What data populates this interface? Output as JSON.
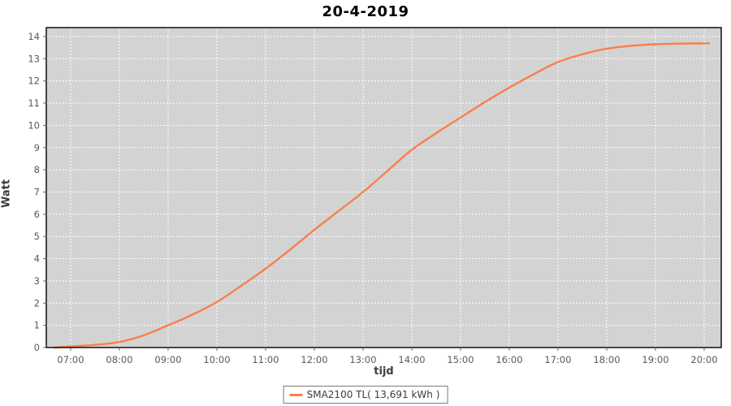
{
  "chart_data": {
    "type": "line",
    "title": "20-4-2019",
    "xlabel": "tijd",
    "ylabel": "Watt",
    "x_axis": {
      "start_hour": 6.5,
      "end_hour": 20.35,
      "ticks": [
        {
          "hour": 7,
          "label": "07:00"
        },
        {
          "hour": 8,
          "label": "08:00"
        },
        {
          "hour": 9,
          "label": "09:00"
        },
        {
          "hour": 10,
          "label": "10:00"
        },
        {
          "hour": 11,
          "label": "11:00"
        },
        {
          "hour": 12,
          "label": "12:00"
        },
        {
          "hour": 13,
          "label": "13:00"
        },
        {
          "hour": 14,
          "label": "14:00"
        },
        {
          "hour": 15,
          "label": "15:00"
        },
        {
          "hour": 16,
          "label": "16:00"
        },
        {
          "hour": 17,
          "label": "17:00"
        },
        {
          "hour": 18,
          "label": "18:00"
        },
        {
          "hour": 19,
          "label": "19:00"
        },
        {
          "hour": 20,
          "label": "20:00"
        }
      ]
    },
    "y_axis": {
      "min": 0,
      "max": 14.4,
      "ticks": [
        0,
        1,
        2,
        3,
        4,
        5,
        6,
        7,
        8,
        9,
        10,
        11,
        12,
        13,
        14
      ]
    },
    "grid": {
      "shown": true,
      "style": "dashed-white"
    },
    "legend": {
      "position": "bottom-center",
      "label": "SMA2100 TL( 13,691 kWh )"
    },
    "series": [
      {
        "name": "SMA2100 TL",
        "color": "#f7814a",
        "points_hour_kwh": [
          [
            6.67,
            0.0
          ],
          [
            7.0,
            0.05
          ],
          [
            7.5,
            0.12
          ],
          [
            8.0,
            0.25
          ],
          [
            8.5,
            0.55
          ],
          [
            9.0,
            1.0
          ],
          [
            9.5,
            1.48
          ],
          [
            10.0,
            2.05
          ],
          [
            10.5,
            2.78
          ],
          [
            11.0,
            3.55
          ],
          [
            11.5,
            4.4
          ],
          [
            12.0,
            5.3
          ],
          [
            12.5,
            6.15
          ],
          [
            13.0,
            7.0
          ],
          [
            13.5,
            7.95
          ],
          [
            14.0,
            8.9
          ],
          [
            14.5,
            9.65
          ],
          [
            15.0,
            10.35
          ],
          [
            15.5,
            11.05
          ],
          [
            16.0,
            11.7
          ],
          [
            16.5,
            12.3
          ],
          [
            17.0,
            12.85
          ],
          [
            17.5,
            13.2
          ],
          [
            18.0,
            13.45
          ],
          [
            18.5,
            13.58
          ],
          [
            19.0,
            13.65
          ],
          [
            19.5,
            13.68
          ],
          [
            20.0,
            13.69
          ],
          [
            20.1,
            13.691
          ]
        ]
      }
    ],
    "colors": {
      "series": "#f7814a",
      "plot_background": "#d3d3d3",
      "gridline": "#ffffff",
      "plot_border": "#000000",
      "tick_label": "#5a5a5a",
      "tick_mark": "#666666",
      "axis_label": "#3c3c3c",
      "title": "#000000",
      "legend_border": "#7a7a7a"
    }
  }
}
